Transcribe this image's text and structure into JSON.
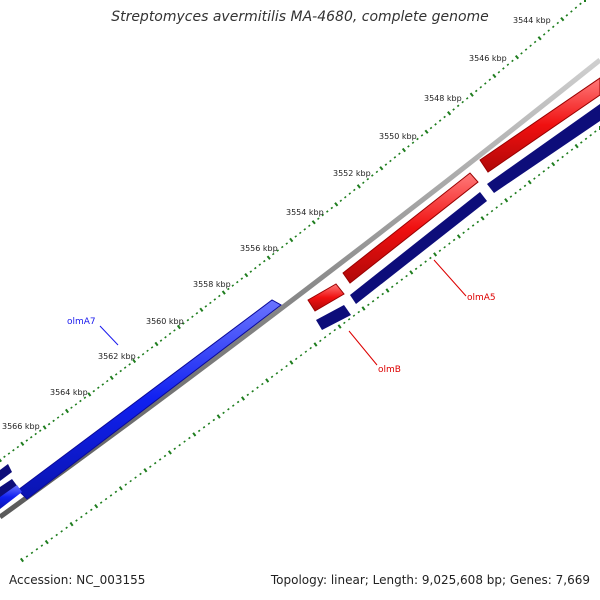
{
  "title": "Streptomyces avermitilis MA-4680, complete genome",
  "accession_text": "Accession: NC_003155",
  "summary_text": "Topology: linear; Length: 9,025,608 bp; Genes: 7,669",
  "scale_labels": [
    "3544 kbp",
    "3546 kbp",
    "3548 kbp",
    "3550 kbp",
    "3552 kbp",
    "3554 kbp",
    "3556 kbp",
    "3558 kbp",
    "3560 kbp",
    "3562 kbp",
    "3564 kbp",
    "3566 kbp"
  ],
  "genes": [
    {
      "name": "olmA7",
      "strand": "forward",
      "color": "#0a1aee"
    },
    {
      "name": "olmA5",
      "strand": "reverse",
      "color": "#dd0000"
    },
    {
      "name": "olmB",
      "strand": "reverse",
      "color": "#dd0000"
    }
  ],
  "colors": {
    "forward_feature": "#0f1df2",
    "reverse_feature": "#f20f0f",
    "cds_dark": "#0d0d7a",
    "backbone": "#8a8a8a",
    "tick": "#1e7d1e"
  }
}
